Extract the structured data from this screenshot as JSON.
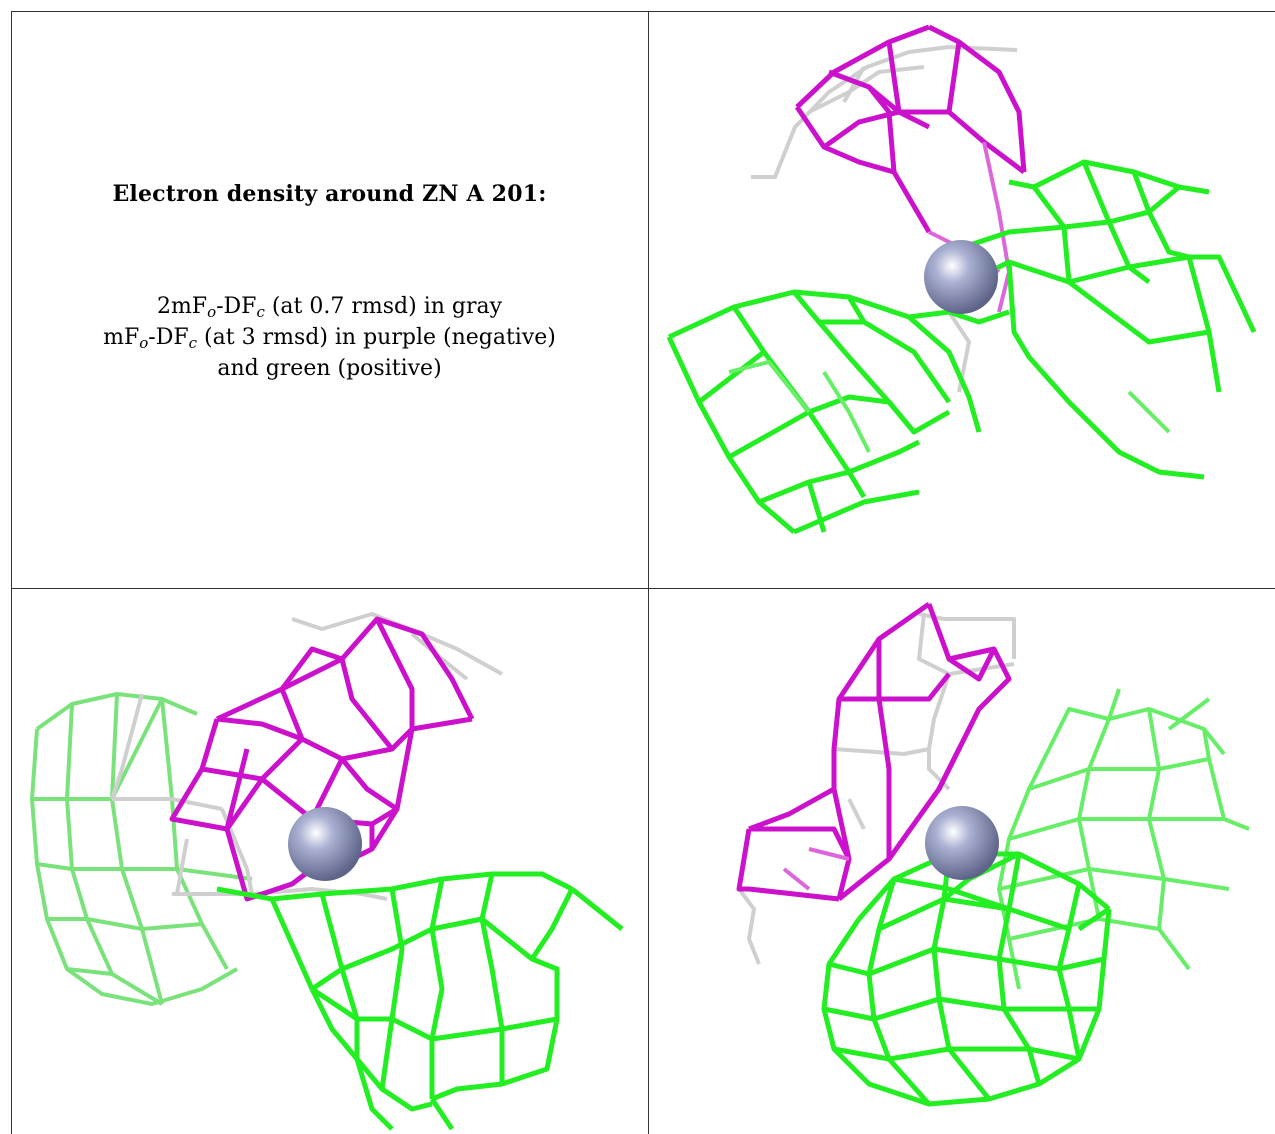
{
  "caption": {
    "title": "Electron density around ZN A 201:",
    "line1": {
      "a": "2mF",
      "b": "o",
      "c": "-DF",
      "d": "c",
      "e": " (at 0.7 rmsd) in gray"
    },
    "line2": {
      "a": "mF",
      "b": "o",
      "c": "-DF",
      "d": "c",
      "e": " (at 3 rmsd) in purple (negative)"
    },
    "line3": "and green (positive)"
  },
  "colors": {
    "positive_map": "#22ee22",
    "negative_map": "#cc11cc",
    "model_map": "#cfcfcf",
    "zinc_atom": "#8a93b8",
    "grid_lines": "#333333"
  },
  "panels": [
    {
      "view": "view-1",
      "position": "top-right"
    },
    {
      "view": "view-2",
      "position": "bottom-left"
    },
    {
      "view": "view-3",
      "position": "bottom-right"
    }
  ]
}
